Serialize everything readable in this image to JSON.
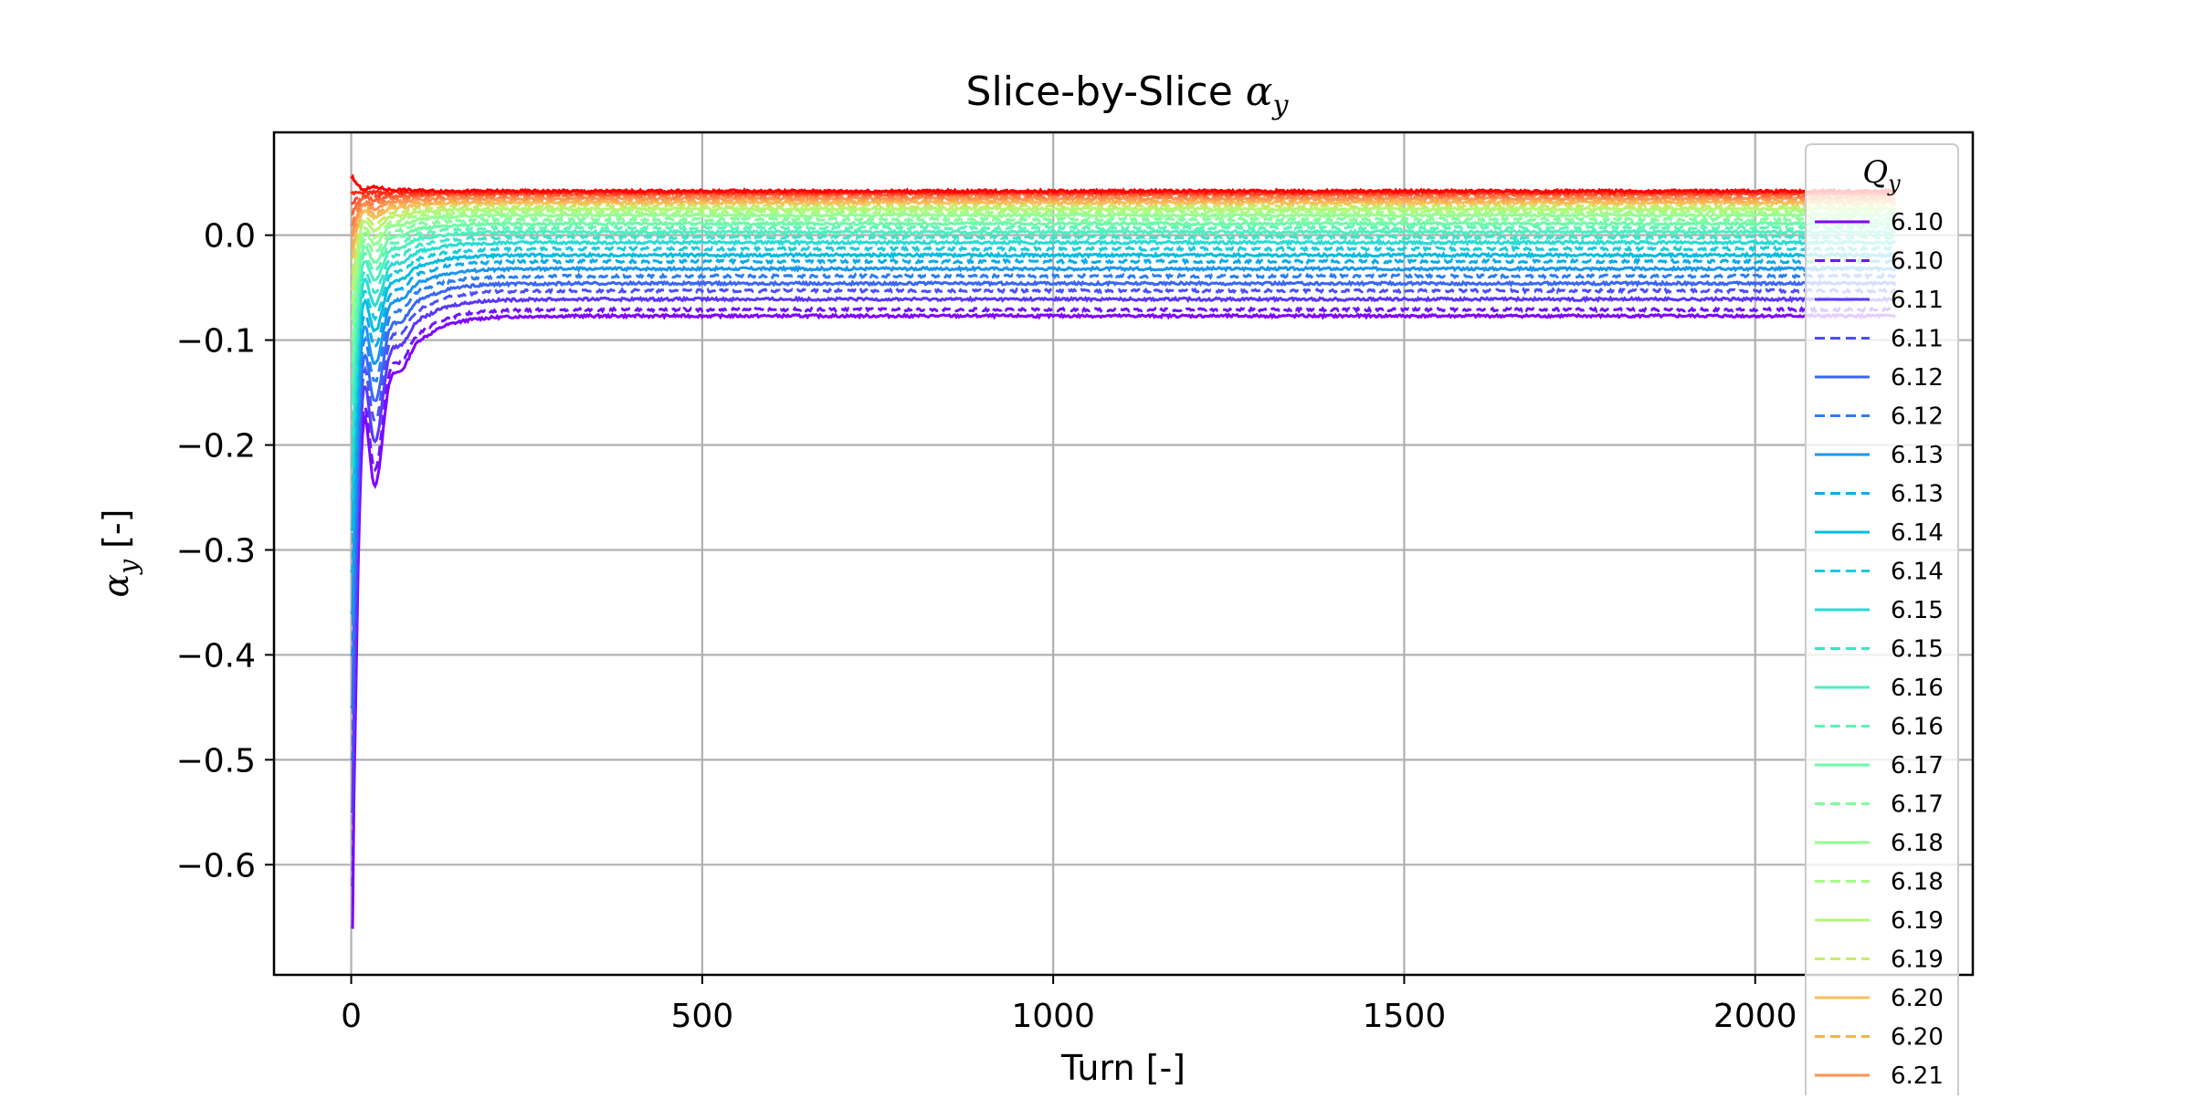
{
  "chart_data": {
    "type": "line",
    "title": "Slice-by-Slice α_y",
    "title_plain": "Slice-by-Slice ",
    "title_symbol": "α",
    "title_subscript": "y",
    "xlabel": "Turn [-]",
    "ylabel_symbol": "α",
    "ylabel_subscript": "y",
    "ylabel_unit": " [-]",
    "xlim": [
      -110,
      2310
    ],
    "ylim": [
      -0.705,
      0.098
    ],
    "xticks": [
      0,
      500,
      1000,
      1500,
      2000
    ],
    "xtick_labels": [
      "0",
      "500",
      "1000",
      "1500",
      "2000"
    ],
    "yticks": [
      0.0,
      -0.1,
      -0.2,
      -0.3,
      -0.4,
      -0.5,
      -0.6
    ],
    "ytick_labels": [
      "0.0",
      "−0.1",
      "−0.2",
      "−0.3",
      "−0.4",
      "−0.5",
      "−0.6"
    ],
    "grid": true,
    "legend": {
      "title_symbol": "Q",
      "title_subscript": "y",
      "placement": "top-right"
    },
    "series": [
      {
        "name": "6.10",
        "style": "solid",
        "color": "#8000ff",
        "steady": -0.077,
        "initial": -0.66
      },
      {
        "name": "6.10",
        "style": "dashed",
        "color": "#7012ff",
        "steady": -0.071,
        "initial": -0.62
      },
      {
        "name": "6.11",
        "style": "solid",
        "color": "#5a36fd",
        "steady": -0.061,
        "initial": -0.55
      },
      {
        "name": "6.11",
        "style": "dashed",
        "color": "#4b4ffc",
        "steady": -0.053,
        "initial": -0.5
      },
      {
        "name": "6.12",
        "style": "solid",
        "color": "#3a66f8",
        "steady": -0.046,
        "initial": -0.45
      },
      {
        "name": "6.12",
        "style": "dashed",
        "color": "#2a7ef3",
        "steady": -0.039,
        "initial": -0.4
      },
      {
        "name": "6.13",
        "style": "solid",
        "color": "#1996ee",
        "steady": -0.032,
        "initial": -0.36
      },
      {
        "name": "6.13",
        "style": "dashed",
        "color": "#0aabe8",
        "steady": -0.025,
        "initial": -0.32
      },
      {
        "name": "6.14",
        "style": "solid",
        "color": "#06bce2",
        "steady": -0.019,
        "initial": -0.28
      },
      {
        "name": "6.14",
        "style": "dashed",
        "color": "#18cbdb",
        "steady": -0.013,
        "initial": -0.25
      },
      {
        "name": "6.15",
        "style": "solid",
        "color": "#2adbd2",
        "steady": -0.007,
        "initial": -0.22
      },
      {
        "name": "6.15",
        "style": "dashed",
        "color": "#3ae4c9",
        "steady": -0.002,
        "initial": -0.19
      },
      {
        "name": "6.16",
        "style": "solid",
        "color": "#4cefbf",
        "steady": 0.003,
        "initial": -0.16
      },
      {
        "name": "6.16",
        "style": "dashed",
        "color": "#5cf5b4",
        "steady": 0.007,
        "initial": -0.14
      },
      {
        "name": "6.17",
        "style": "solid",
        "color": "#6efaa8",
        "steady": 0.011,
        "initial": -0.12
      },
      {
        "name": "6.17",
        "style": "dashed",
        "color": "#80fd9c",
        "steady": 0.015,
        "initial": -0.1
      },
      {
        "name": "6.18",
        "style": "solid",
        "color": "#92ff90",
        "steady": 0.019,
        "initial": -0.08
      },
      {
        "name": "6.18",
        "style": "dashed",
        "color": "#a4fc83",
        "steady": 0.022,
        "initial": -0.065
      },
      {
        "name": "6.19",
        "style": "solid",
        "color": "#b6f575",
        "steady": 0.025,
        "initial": -0.05
      },
      {
        "name": "6.19",
        "style": "dashed",
        "color": "#c8ea67",
        "steady": 0.028,
        "initial": -0.035
      },
      {
        "name": "6.20",
        "style": "solid",
        "color": "#f5c05a",
        "steady": 0.031,
        "initial": -0.02
      },
      {
        "name": "6.20",
        "style": "dashed",
        "color": "#f8b050",
        "steady": 0.033,
        "initial": -0.01
      },
      {
        "name": "6.21",
        "style": "solid",
        "color": "#fb9650",
        "steady": 0.035,
        "initial": 0.0
      },
      {
        "name": "",
        "style": "dashed",
        "color": "#fd7c42",
        "steady": 0.037,
        "initial": 0.01
      },
      {
        "name": "",
        "style": "solid",
        "color": "#fe6235",
        "steady": 0.039,
        "initial": 0.02
      },
      {
        "name": "",
        "style": "dashed",
        "color": "#ff4527",
        "steady": 0.04,
        "initial": 0.03
      },
      {
        "name": "",
        "style": "solid",
        "color": "#ff2a18",
        "steady": 0.041,
        "initial": 0.04
      },
      {
        "name": "",
        "style": "solid",
        "color": "#ff0000",
        "steady": 0.042,
        "initial": 0.055
      }
    ],
    "turn_range": [
      0,
      2200
    ]
  }
}
